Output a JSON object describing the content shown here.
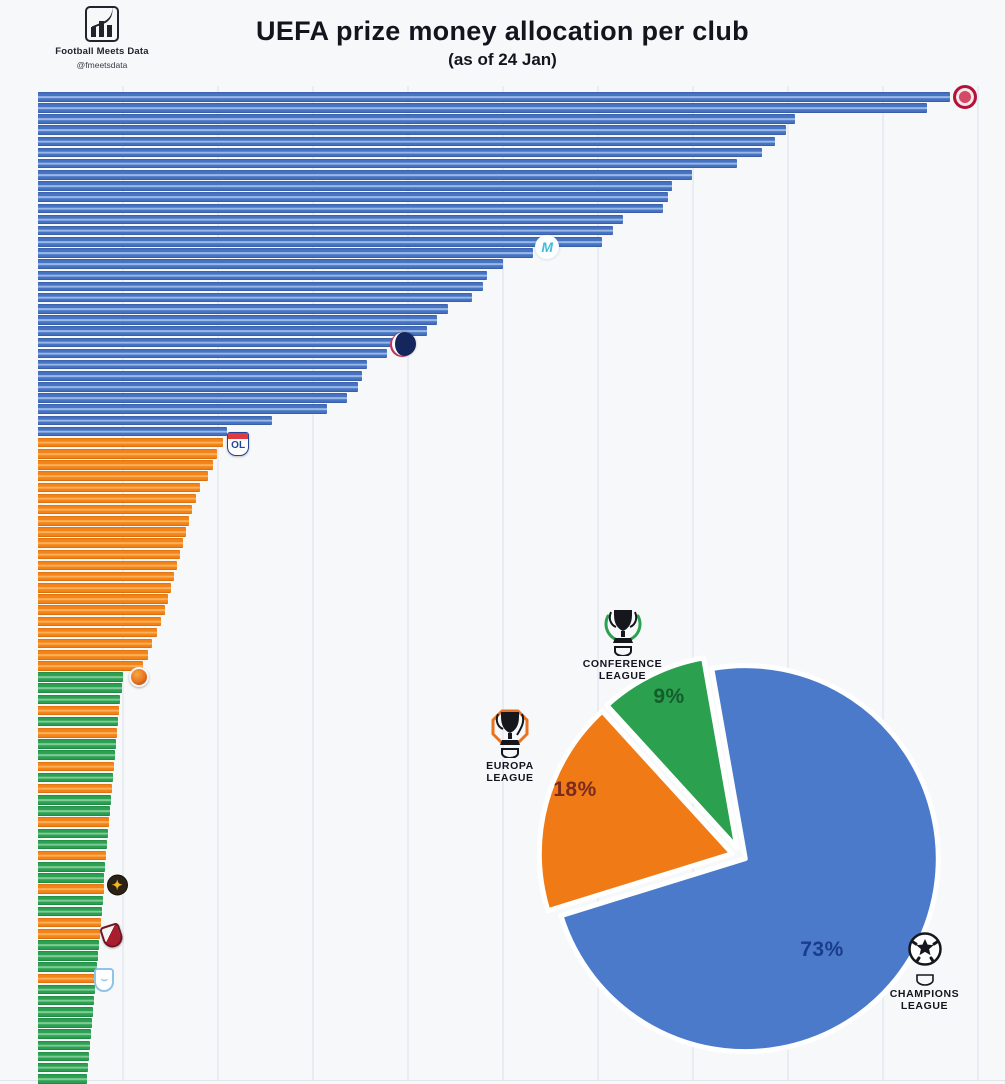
{
  "header": {
    "title": "UEFA prize money allocation per club",
    "subtitle": "(as of 24 Jan)",
    "brand": {
      "name": "Football Meets Data",
      "handle": "@fmeetsdata"
    }
  },
  "colors": {
    "champions_league": "#4673c2",
    "europa_league": "#f58418",
    "conference_league": "#2da152",
    "background": "#f7f8fa",
    "gridline": "#e9edf3"
  },
  "chart_data": [
    {
      "type": "bar",
      "orientation": "horizontal",
      "title": "UEFA prize money allocation per club (as of 24 Jan)",
      "sorted": "descending",
      "x_axis": {
        "tick_labels_visible": false,
        "gridlines": true
      },
      "value_unit": "percent of longest bar (no numeric axis shown in image)",
      "leagues": {
        "cl": {
          "name": "Champions League",
          "color": "#4673c2"
        },
        "el": {
          "name": "Europa League",
          "color": "#f58418"
        },
        "uecl": {
          "name": "Conference League",
          "color": "#2da152"
        }
      },
      "bars": [
        {
          "r": 1,
          "lg": "cl",
          "v": 100.0
        },
        {
          "r": 2,
          "lg": "cl",
          "v": 97.5
        },
        {
          "r": 3,
          "lg": "cl",
          "v": 83.0
        },
        {
          "r": 4,
          "lg": "cl",
          "v": 82.0
        },
        {
          "r": 5,
          "lg": "cl",
          "v": 80.8
        },
        {
          "r": 6,
          "lg": "cl",
          "v": 79.4
        },
        {
          "r": 7,
          "lg": "cl",
          "v": 76.6
        },
        {
          "r": 8,
          "lg": "cl",
          "v": 71.7
        },
        {
          "r": 9,
          "lg": "cl",
          "v": 69.5
        },
        {
          "r": 10,
          "lg": "cl",
          "v": 69.1
        },
        {
          "r": 11,
          "lg": "cl",
          "v": 68.5
        },
        {
          "r": 12,
          "lg": "cl",
          "v": 64.1
        },
        {
          "r": 13,
          "lg": "cl",
          "v": 63.0
        },
        {
          "r": 14,
          "lg": "cl",
          "v": 61.8
        },
        {
          "r": 15,
          "lg": "cl",
          "v": 54.3
        },
        {
          "r": 16,
          "lg": "cl",
          "v": 51.0
        },
        {
          "r": 17,
          "lg": "cl",
          "v": 49.2
        },
        {
          "r": 18,
          "lg": "cl",
          "v": 48.8
        },
        {
          "r": 19,
          "lg": "cl",
          "v": 47.6
        },
        {
          "r": 20,
          "lg": "cl",
          "v": 45.0
        },
        {
          "r": 21,
          "lg": "cl",
          "v": 43.8
        },
        {
          "r": 22,
          "lg": "cl",
          "v": 42.7
        },
        {
          "r": 23,
          "lg": "cl",
          "v": 41.0
        },
        {
          "r": 24,
          "lg": "cl",
          "v": 38.3
        },
        {
          "r": 25,
          "lg": "cl",
          "v": 36.1
        },
        {
          "r": 26,
          "lg": "cl",
          "v": 35.5
        },
        {
          "r": 27,
          "lg": "cl",
          "v": 35.1
        },
        {
          "r": 28,
          "lg": "cl",
          "v": 33.9
        },
        {
          "r": 29,
          "lg": "cl",
          "v": 31.7
        },
        {
          "r": 30,
          "lg": "cl",
          "v": 25.7
        },
        {
          "r": 31,
          "lg": "cl",
          "v": 20.7
        },
        {
          "r": 32,
          "lg": "el",
          "v": 20.3
        },
        {
          "r": 33,
          "lg": "el",
          "v": 19.6
        },
        {
          "r": 34,
          "lg": "el",
          "v": 19.2
        },
        {
          "r": 35,
          "lg": "el",
          "v": 18.6
        },
        {
          "r": 36,
          "lg": "el",
          "v": 17.8
        },
        {
          "r": 37,
          "lg": "el",
          "v": 17.3
        },
        {
          "r": 38,
          "lg": "el",
          "v": 16.9
        },
        {
          "r": 39,
          "lg": "el",
          "v": 16.6
        },
        {
          "r": 40,
          "lg": "el",
          "v": 16.2
        },
        {
          "r": 41,
          "lg": "el",
          "v": 15.9
        },
        {
          "r": 42,
          "lg": "el",
          "v": 15.6
        },
        {
          "r": 43,
          "lg": "el",
          "v": 15.2
        },
        {
          "r": 44,
          "lg": "el",
          "v": 14.9
        },
        {
          "r": 45,
          "lg": "el",
          "v": 14.6
        },
        {
          "r": 46,
          "lg": "el",
          "v": 14.3
        },
        {
          "r": 47,
          "lg": "el",
          "v": 13.9
        },
        {
          "r": 48,
          "lg": "el",
          "v": 13.5
        },
        {
          "r": 49,
          "lg": "el",
          "v": 13.0
        },
        {
          "r": 50,
          "lg": "el",
          "v": 12.5
        },
        {
          "r": 51,
          "lg": "el",
          "v": 12.1
        },
        {
          "r": 52,
          "lg": "el",
          "v": 11.5
        },
        {
          "r": 53,
          "lg": "uecl",
          "v": 9.3
        },
        {
          "r": 54,
          "lg": "uecl",
          "v": 9.2
        },
        {
          "r": 55,
          "lg": "uecl",
          "v": 9.0
        },
        {
          "r": 56,
          "lg": "el",
          "v": 8.9
        },
        {
          "r": 57,
          "lg": "uecl",
          "v": 8.8
        },
        {
          "r": 58,
          "lg": "el",
          "v": 8.7
        },
        {
          "r": 59,
          "lg": "uecl",
          "v": 8.6
        },
        {
          "r": 60,
          "lg": "uecl",
          "v": 8.4
        },
        {
          "r": 61,
          "lg": "el",
          "v": 8.3
        },
        {
          "r": 62,
          "lg": "uecl",
          "v": 8.2
        },
        {
          "r": 63,
          "lg": "el",
          "v": 8.1
        },
        {
          "r": 64,
          "lg": "uecl",
          "v": 8.0
        },
        {
          "r": 65,
          "lg": "uecl",
          "v": 7.9
        },
        {
          "r": 66,
          "lg": "el",
          "v": 7.8
        },
        {
          "r": 67,
          "lg": "uecl",
          "v": 7.7
        },
        {
          "r": 68,
          "lg": "uecl",
          "v": 7.6
        },
        {
          "r": 69,
          "lg": "el",
          "v": 7.5
        },
        {
          "r": 70,
          "lg": "uecl",
          "v": 7.3
        },
        {
          "r": 71,
          "lg": "uecl",
          "v": 7.2
        },
        {
          "r": 72,
          "lg": "el",
          "v": 7.2
        },
        {
          "r": 73,
          "lg": "uecl",
          "v": 7.1
        },
        {
          "r": 74,
          "lg": "uecl",
          "v": 7.0
        },
        {
          "r": 75,
          "lg": "el",
          "v": 6.9
        },
        {
          "r": 76,
          "lg": "el",
          "v": 6.8
        },
        {
          "r": 77,
          "lg": "uecl",
          "v": 6.7
        },
        {
          "r": 78,
          "lg": "uecl",
          "v": 6.6
        },
        {
          "r": 79,
          "lg": "uecl",
          "v": 6.5
        },
        {
          "r": 80,
          "lg": "el",
          "v": 6.4
        },
        {
          "r": 81,
          "lg": "uecl",
          "v": 6.3
        },
        {
          "r": 82,
          "lg": "uecl",
          "v": 6.1
        },
        {
          "r": 83,
          "lg": "uecl",
          "v": 6.0
        },
        {
          "r": 84,
          "lg": "uecl",
          "v": 5.9
        },
        {
          "r": 85,
          "lg": "uecl",
          "v": 5.8
        },
        {
          "r": 86,
          "lg": "uecl",
          "v": 5.7
        },
        {
          "r": 87,
          "lg": "uecl",
          "v": 5.6
        },
        {
          "r": 88,
          "lg": "uecl",
          "v": 5.5
        },
        {
          "r": 89,
          "lg": "uecl",
          "v": 5.4
        }
      ],
      "club_markers": [
        {
          "rank": 1,
          "id": "bayern",
          "club": "Bayern Munich",
          "text": ""
        },
        {
          "rank": 15,
          "id": "marseille",
          "club": "Marseille",
          "text": "M"
        },
        {
          "rank": 23,
          "id": "psg",
          "club": "Paris Saint-Germain",
          "text": ""
        },
        {
          "rank": 32,
          "id": "lyon",
          "club": "Olympique Lyonnais",
          "text": "OL"
        },
        {
          "rank": 53,
          "id": "orange-ball",
          "text": ""
        },
        {
          "rank": 72,
          "id": "gold-star",
          "text": "✦"
        },
        {
          "rank": 76,
          "id": "red-shield",
          "text": ""
        },
        {
          "rank": 80,
          "id": "blue-crest",
          "text": "⌣"
        }
      ]
    },
    {
      "type": "pie",
      "start_angle_deg": -10,
      "clockwise": true,
      "separator_color": "#ffffff",
      "slices": [
        {
          "label": "Champions League",
          "badge_line1": "CHAMPIONS",
          "badge_line2": "LEAGUE",
          "value": 73,
          "pct_text": "73%",
          "color": "#4a7ac9",
          "pct_color": "#1b3c8c"
        },
        {
          "label": "Europa League",
          "badge_line1": "EUROPA",
          "badge_line2": "LEAGUE",
          "value": 18,
          "pct_text": "18%",
          "color": "#f07b16",
          "pct_color": "#7a2a1f"
        },
        {
          "label": "Conference League",
          "badge_line1": "CONFERENCE",
          "badge_line2": "LEAGUE",
          "value": 9,
          "pct_text": "9%",
          "color": "#2ba04f",
          "pct_color": "#145c2c"
        }
      ]
    }
  ]
}
